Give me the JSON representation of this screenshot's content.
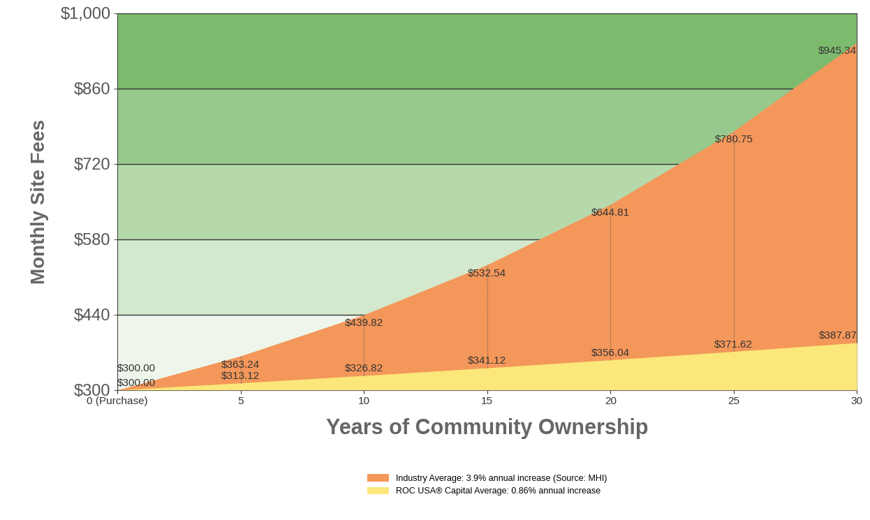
{
  "chart_data": {
    "type": "area",
    "x_label": "Years of Community Ownership",
    "y_label": "Monthly Site Fees",
    "x": [
      0,
      5,
      10,
      15,
      20,
      25,
      30
    ],
    "xlim": [
      0,
      30
    ],
    "xticks": [
      {
        "value": 0,
        "label": "0 (Purchase)"
      },
      5,
      10,
      15,
      20,
      25,
      30
    ],
    "ylim": [
      300,
      1000
    ],
    "yticks": [
      {
        "value": 300,
        "label": "$300"
      },
      {
        "value": 440,
        "label": "$440"
      },
      {
        "value": 580,
        "label": "$580"
      },
      {
        "value": 720,
        "label": "$720"
      },
      {
        "value": 860,
        "label": "$860"
      },
      {
        "value": 1000,
        "label": "$1,000"
      }
    ],
    "grid": true,
    "stacked": false,
    "data_labels": true,
    "legend": "lower center",
    "series": [
      {
        "name": "Industry Average: 3.9% annual increase (Source: MHI)",
        "color": "#f4975a",
        "values": [
          300.0,
          363.24,
          439.82,
          532.54,
          644.81,
          780.75,
          945.34
        ],
        "value_labels": [
          "$300.00",
          "$363.24",
          "$439.82",
          "$532.54",
          "$644.81",
          "$780.75",
          "$945.34"
        ]
      },
      {
        "name": "ROC USA® Capital Average: 0.86% annual increase",
        "color": "#fbe77a",
        "values": [
          300.0,
          313.12,
          326.82,
          341.12,
          356.04,
          371.62,
          387.87
        ],
        "value_labels": [
          "$300.00",
          "$313.12",
          "$326.82",
          "$341.12",
          "$356.04",
          "$371.62",
          "$387.87"
        ]
      }
    ]
  }
}
